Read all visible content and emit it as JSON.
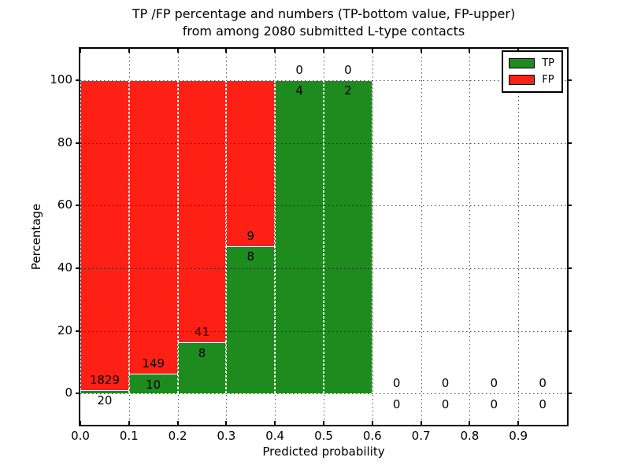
{
  "figure": {
    "title_line1": "TP /FP percentage and numbers (TP-bottom value, FP-upper)",
    "title_line2": "from among 2080 submitted L-type contacts"
  },
  "legend": {
    "tp": "TP",
    "fp": "FP"
  },
  "colors": {
    "tp_green": "#1e8b1e",
    "fp_red": "#ff2015",
    "grid": "#000000",
    "background": "#ffffff"
  },
  "chart_data": {
    "type": "bar",
    "stacked": true,
    "title": "TP /FP percentage and numbers (TP-bottom value, FP-upper) from among 2080 submitted L-type contacts",
    "xlabel": "Predicted probability",
    "ylabel": "Percentage",
    "xlim": [
      0.0,
      1.0
    ],
    "ylim": [
      -10,
      110
    ],
    "grid": true,
    "legend_position": "upper right",
    "x_tick_values": [
      0.0,
      0.1,
      0.2,
      0.3,
      0.4,
      0.5,
      0.6,
      0.7,
      0.8,
      0.9
    ],
    "x_tick_labels": [
      "0.0",
      "0.1",
      "0.2",
      "0.3",
      "0.4",
      "0.5",
      "0.6",
      "0.7",
      "0.8",
      "0.9"
    ],
    "y_tick_values": [
      0,
      20,
      40,
      60,
      80,
      100
    ],
    "y_tick_labels": [
      "0",
      "20",
      "40",
      "60",
      "80",
      "100"
    ],
    "bin_edges": [
      0.0,
      0.1,
      0.2,
      0.3,
      0.4,
      0.5,
      0.6,
      0.7,
      0.8,
      0.9,
      1.0
    ],
    "series": [
      {
        "name": "TP",
        "color": "#1e8b1e",
        "counts": [
          20,
          10,
          8,
          8,
          4,
          2,
          0,
          0,
          0,
          0
        ],
        "percent": [
          1.08,
          6.29,
          16.33,
          47.06,
          100,
          100,
          0,
          0,
          0,
          0
        ]
      },
      {
        "name": "FP",
        "color": "#ff2015",
        "counts": [
          1829,
          149,
          41,
          9,
          0,
          0,
          0,
          0,
          0,
          0
        ],
        "percent": [
          98.92,
          93.71,
          83.67,
          52.94,
          0,
          0,
          0,
          0,
          0,
          0
        ]
      }
    ]
  }
}
